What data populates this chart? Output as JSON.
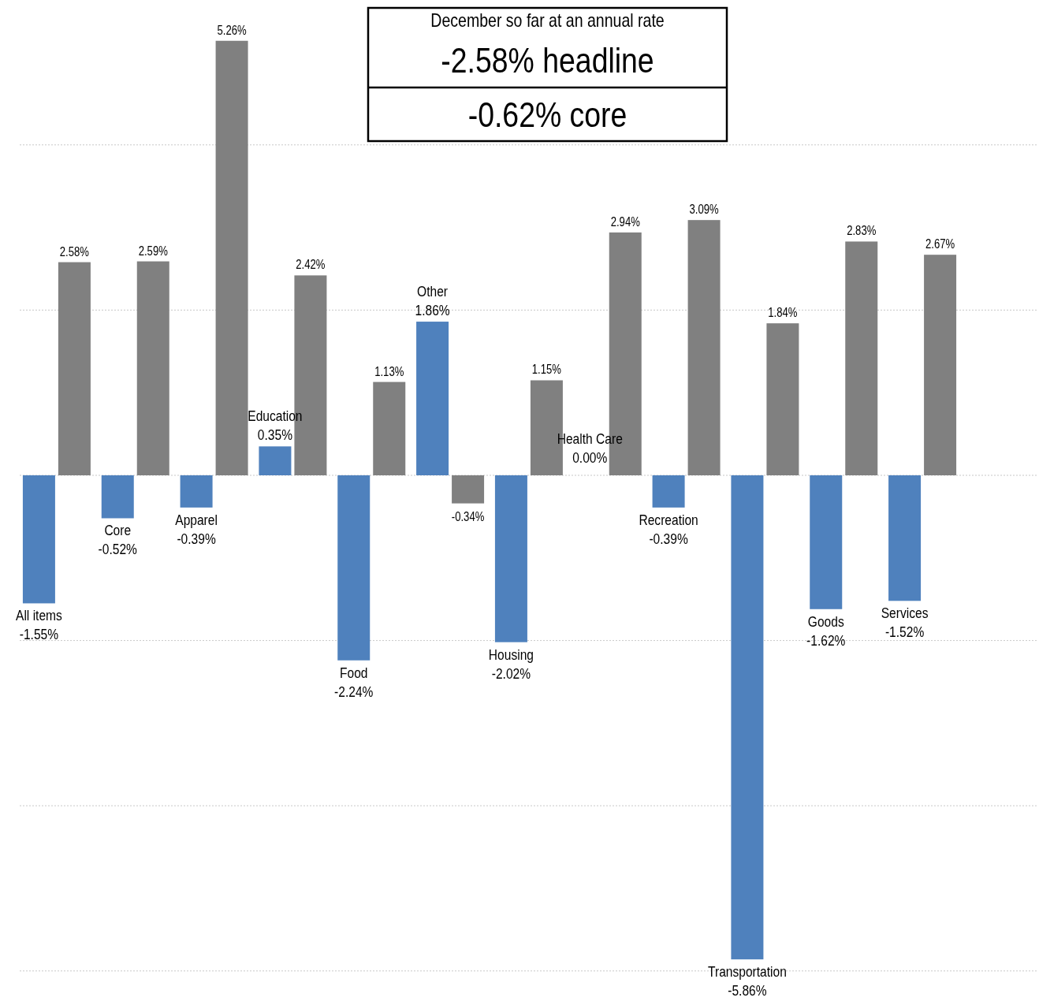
{
  "chart_data": {
    "type": "bar",
    "title": "December so far at an annual rate",
    "annotations": [
      "-2.58% headline",
      "-0.62% core"
    ],
    "categories": [
      "All items",
      "Core",
      "Apparel",
      "Education",
      "Food",
      "Other",
      "Housing",
      "Health Care",
      "Recreation",
      "Transportation",
      "Goods",
      "Services"
    ],
    "series": [
      {
        "color": "#4f81bd",
        "values": [
          -1.55,
          -0.52,
          -0.39,
          0.35,
          -2.24,
          1.86,
          -2.02,
          0.0,
          -0.39,
          -5.86,
          -1.62,
          -1.52
        ],
        "value_labels": [
          "-1.55%",
          "-0.52%",
          "-0.39%",
          "0.35%",
          "-2.24%",
          "1.86%",
          "-2.02%",
          "0.00%",
          "-0.39%",
          "-5.86%",
          "-1.62%",
          "-1.52%"
        ]
      },
      {
        "color": "#808080",
        "values": [
          2.58,
          2.59,
          5.26,
          2.42,
          1.13,
          -0.34,
          1.15,
          2.94,
          3.09,
          1.84,
          2.83,
          2.67
        ],
        "value_labels": [
          "2.58%",
          "2.59%",
          "5.26%",
          "2.42%",
          "1.13%",
          "-0.34%",
          "1.15%",
          "2.94%",
          "3.09%",
          "1.84%",
          "2.83%",
          "2.67%"
        ]
      }
    ],
    "yticks": [
      {
        "value": -6,
        "label": null
      },
      {
        "value": -4,
        "label": null
      },
      {
        "value": -2,
        "label": null
      },
      {
        "value": 0,
        "label": null
      },
      {
        "value": 2,
        "label": null
      },
      {
        "value": 4,
        "label": null
      }
    ],
    "grid": "y"
  }
}
